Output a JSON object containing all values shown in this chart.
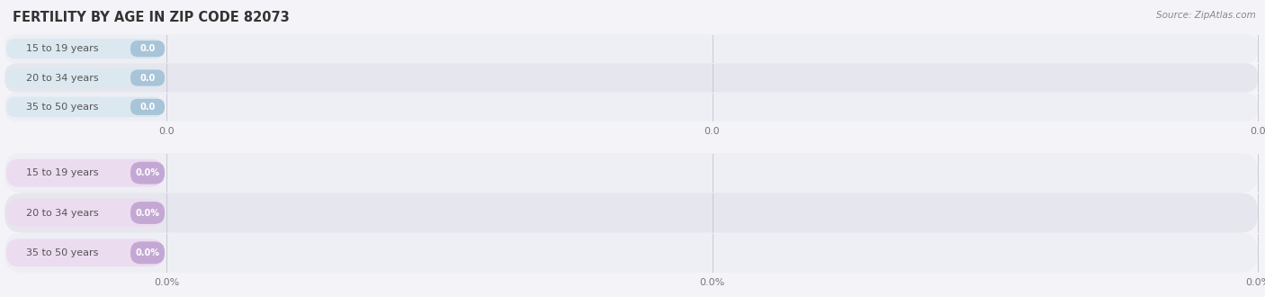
{
  "title": "FERTILITY BY AGE IN ZIP CODE 82073",
  "source": "Source: ZipAtlas.com",
  "fig_bg_color": "#f4f4f8",
  "top_section": {
    "categories": [
      "15 to 19 years",
      "20 to 34 years",
      "35 to 50 years"
    ],
    "values": [
      0.0,
      0.0,
      0.0
    ],
    "bar_color": "#a8c4d8",
    "label_bg": "#dce8f0",
    "x_tick_labels": [
      "0.0",
      "0.0",
      "0.0"
    ]
  },
  "bottom_section": {
    "categories": [
      "15 to 19 years",
      "20 to 34 years",
      "35 to 50 years"
    ],
    "values": [
      0.0,
      0.0,
      0.0
    ],
    "bar_color": "#c4a8d4",
    "label_bg": "#ecdcf0",
    "x_tick_labels": [
      "0.0%",
      "0.0%",
      "0.0%"
    ]
  },
  "row_bg_even": "#eeeff4",
  "row_bg_odd": "#e6e7ee",
  "grid_color": "#c8c8d4",
  "title_color": "#333333",
  "source_color": "#888888",
  "label_text_color": "#555555",
  "tick_color": "#777777",
  "title_fontsize": 10.5,
  "label_fontsize": 8.0,
  "value_fontsize": 7.0,
  "tick_fontsize": 8.0,
  "source_fontsize": 7.5
}
